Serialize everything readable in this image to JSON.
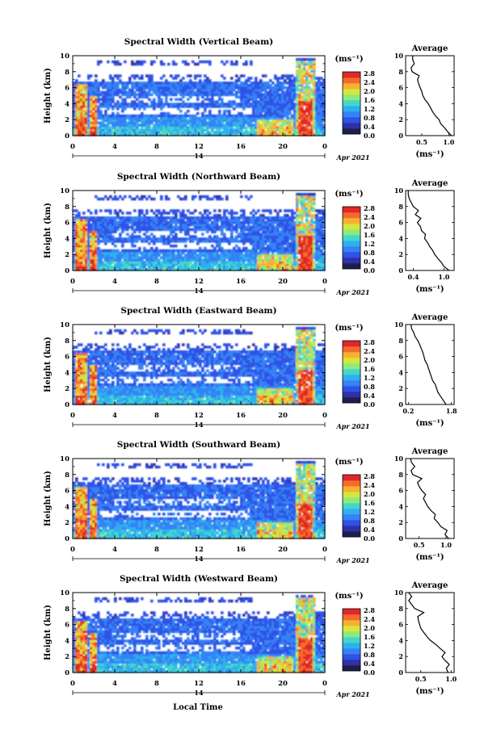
{
  "figure": {
    "xlabel": "Local Time",
    "date_label": "Apr 2021",
    "day_label": "14",
    "unit_label": "(ms⁻¹)",
    "avg_title": "Average"
  },
  "colorscale": {
    "ticks": [
      "2.8",
      "2.4",
      "2.0",
      "1.6",
      "1.2",
      "0.8",
      "0.4",
      "0.0"
    ],
    "colors": [
      "#1e1e4e",
      "#3030a6",
      "#2f52e6",
      "#3582f5",
      "#2fb0ee",
      "#45d6c9",
      "#8cea7e",
      "#d7e63c",
      "#f8b030",
      "#f56a2c",
      "#e02828"
    ]
  },
  "chart_data": [
    {
      "type": "heatmap",
      "title": "Spectral Width (Vertical Beam)",
      "xlabel": "Local Time",
      "ylabel": "Height (km)",
      "xlim": [
        0,
        24
      ],
      "ylim": [
        0,
        10
      ],
      "xticks": [
        "0",
        "4",
        "8",
        "12",
        "16",
        "20",
        "0"
      ],
      "yticks": [
        "0",
        "2",
        "4",
        "6",
        "8",
        "10"
      ],
      "zlim": [
        0.0,
        3.0
      ],
      "zlabel": "(ms⁻¹)",
      "average": {
        "xlabel": "(ms⁻¹)",
        "xlim": [
          0.2,
          1.1
        ],
        "xticks": [
          "0.5",
          "1.0"
        ],
        "heights": [
          0,
          0.5,
          1,
          1.5,
          2,
          2.5,
          3,
          3.5,
          4,
          4.5,
          5,
          5.5,
          6,
          6.5,
          7,
          7.5,
          8,
          8.5,
          9,
          9.5,
          10
        ],
        "values": [
          1.05,
          0.98,
          0.92,
          0.85,
          0.82,
          0.75,
          0.7,
          0.66,
          0.62,
          0.56,
          0.52,
          0.5,
          0.47,
          0.44,
          0.42,
          0.45,
          0.32,
          0.3,
          0.36,
          0.33,
          0.33
        ]
      }
    },
    {
      "type": "heatmap",
      "title": "Spectral Width (Northward Beam)",
      "xlabel": "Local Time",
      "ylabel": "Height (km)",
      "xlim": [
        0,
        24
      ],
      "ylim": [
        0,
        10
      ],
      "xticks": [
        "0",
        "4",
        "8",
        "12",
        "16",
        "20",
        "0"
      ],
      "yticks": [
        "0",
        "2",
        "4",
        "6",
        "8",
        "10"
      ],
      "zlim": [
        0.0,
        3.0
      ],
      "zlabel": "(ms⁻¹)",
      "average": {
        "xlabel": "(ms⁻¹)",
        "xlim": [
          0.25,
          1.2
        ],
        "xticks": [
          "0.4",
          "1.0"
        ],
        "heights": [
          0,
          0.5,
          1,
          1.5,
          2,
          2.5,
          3,
          3.5,
          4,
          4.5,
          5,
          5.5,
          6,
          6.5,
          7,
          7.5,
          8,
          8.5,
          9,
          9.5,
          10
        ],
        "values": [
          1.1,
          1.0,
          0.95,
          0.88,
          0.82,
          0.78,
          0.72,
          0.68,
          0.62,
          0.64,
          0.56,
          0.54,
          0.48,
          0.55,
          0.44,
          0.5,
          0.4,
          0.36,
          0.32,
          0.3,
          0.3
        ]
      }
    },
    {
      "type": "heatmap",
      "title": "Spectral Width (Eastward Beam)",
      "xlabel": "Local Time",
      "ylabel": "Height (km)",
      "xlim": [
        0,
        24
      ],
      "ylim": [
        0,
        10
      ],
      "xticks": [
        "0",
        "4",
        "8",
        "12",
        "16",
        "20",
        "0"
      ],
      "yticks": [
        "0",
        "2",
        "4",
        "6",
        "8",
        "10"
      ],
      "zlim": [
        0.0,
        3.0
      ],
      "zlabel": "(ms⁻¹)",
      "average": {
        "xlabel": "(ms⁻¹)",
        "xlim": [
          0.1,
          1.9
        ],
        "xticks": [
          "0.2",
          "1.8"
        ],
        "heights": [
          0,
          0.5,
          1,
          1.5,
          2,
          2.5,
          3,
          3.5,
          4,
          4.5,
          5,
          5.5,
          6,
          6.5,
          7,
          7.5,
          8,
          8.5,
          9,
          9.5,
          10
        ],
        "values": [
          1.6,
          1.5,
          1.4,
          1.3,
          1.25,
          1.2,
          1.1,
          1.05,
          1.0,
          0.95,
          0.9,
          0.82,
          0.78,
          0.74,
          0.68,
          0.62,
          0.55,
          0.45,
          0.4,
          0.32,
          0.3
        ]
      }
    },
    {
      "type": "heatmap",
      "title": "Spectral Width (Southward Beam)",
      "xlabel": "Local Time",
      "ylabel": "Height (km)",
      "xlim": [
        0,
        24
      ],
      "ylim": [
        0,
        10
      ],
      "xticks": [
        "0",
        "4",
        "8",
        "12",
        "16",
        "20",
        "0"
      ],
      "yticks": [
        "0",
        "2",
        "4",
        "6",
        "8",
        "10"
      ],
      "zlim": [
        0.0,
        3.0
      ],
      "zlabel": "(ms⁻¹)",
      "average": {
        "xlabel": "(ms⁻¹)",
        "xlim": [
          0.25,
          1.15
        ],
        "xticks": [
          "0.5",
          "1.0"
        ],
        "heights": [
          0,
          0.5,
          1,
          1.5,
          2,
          2.5,
          3,
          3.5,
          4,
          4.5,
          5,
          5.5,
          6,
          6.5,
          7,
          7.5,
          8,
          8.5,
          9,
          9.5,
          10
        ],
        "values": [
          1.05,
          0.98,
          1.02,
          0.9,
          0.85,
          0.78,
          0.8,
          0.72,
          0.66,
          0.62,
          0.58,
          0.62,
          0.55,
          0.5,
          0.47,
          0.55,
          0.38,
          0.35,
          0.42,
          0.36,
          0.34
        ]
      }
    },
    {
      "type": "heatmap",
      "title": "Spectral Width (Westward Beam)",
      "xlabel": "Local Time",
      "ylabel": "Height (km)",
      "xlim": [
        0,
        24
      ],
      "ylim": [
        0,
        10
      ],
      "xticks": [
        "0",
        "4",
        "8",
        "12",
        "16",
        "20",
        "0"
      ],
      "yticks": [
        "0",
        "2",
        "4",
        "6",
        "8",
        "10"
      ],
      "zlim": [
        0.0,
        3.0
      ],
      "zlabel": "(ms⁻¹)",
      "average": {
        "xlabel": "(ms⁻¹)",
        "xlim": [
          0.25,
          1.05
        ],
        "xticks": [
          "0.5",
          "1.0"
        ],
        "heights": [
          0,
          0.5,
          1,
          1.5,
          2,
          2.5,
          3,
          3.5,
          4,
          4.5,
          5,
          5.5,
          6,
          6.5,
          7,
          7.5,
          8,
          8.5,
          9,
          9.5,
          10
        ],
        "values": [
          0.95,
          0.92,
          0.97,
          0.9,
          0.85,
          0.9,
          0.82,
          0.75,
          0.66,
          0.6,
          0.55,
          0.5,
          0.48,
          0.46,
          0.45,
          0.55,
          0.4,
          0.35,
          0.3,
          0.35,
          0.3
        ]
      }
    }
  ]
}
